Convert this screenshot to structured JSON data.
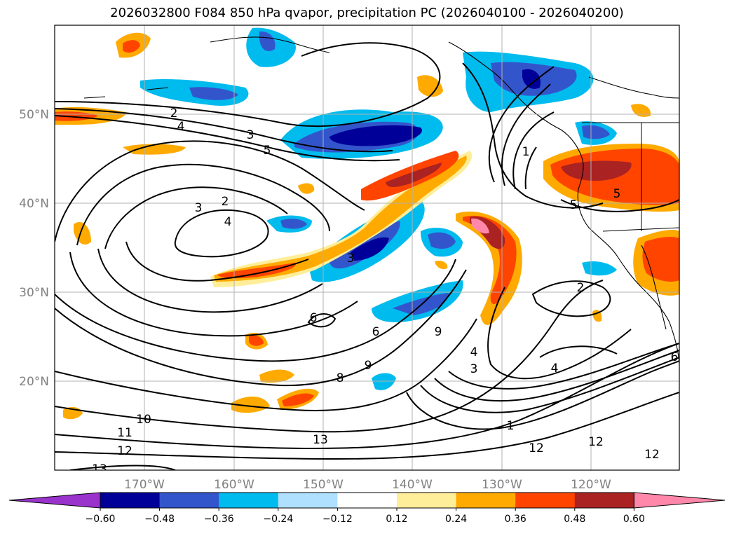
{
  "title": "2026032800 F084 850 hPa qvapor, precipitation PC (2026040100 - 2026040200)",
  "lon_ticks": [
    "170°W",
    "160°W",
    "150°W",
    "140°W",
    "130°W",
    "120°W"
  ],
  "lat_ticks": [
    "50°N",
    "40°N",
    "30°N",
    "20°N"
  ],
  "colorbar": {
    "ticks": [
      "−0.60",
      "−0.48",
      "−0.36",
      "−0.24",
      "−0.12",
      "0.12",
      "0.24",
      "0.36",
      "0.48",
      "0.60"
    ],
    "colors": [
      "#9933cc",
      "#000099",
      "#3355cc",
      "#00bbee",
      "#b0e0ff",
      "#ffffff",
      "#ffee99",
      "#ffaa00",
      "#ff4400",
      "#aa2222",
      "#ff88aa"
    ]
  },
  "contour_labels": [
    "2",
    "4",
    "3",
    "5",
    "3",
    "2",
    "4",
    "3",
    "6",
    "6",
    "9",
    "8",
    "9",
    "10",
    "11",
    "12",
    "13",
    "12",
    "13",
    "4",
    "3",
    "1",
    "5",
    "5",
    "2",
    "4",
    "12",
    "12",
    "1",
    "6"
  ],
  "colors": {
    "positive_strong": "#ff4400",
    "negative_strong": "#000099"
  }
}
